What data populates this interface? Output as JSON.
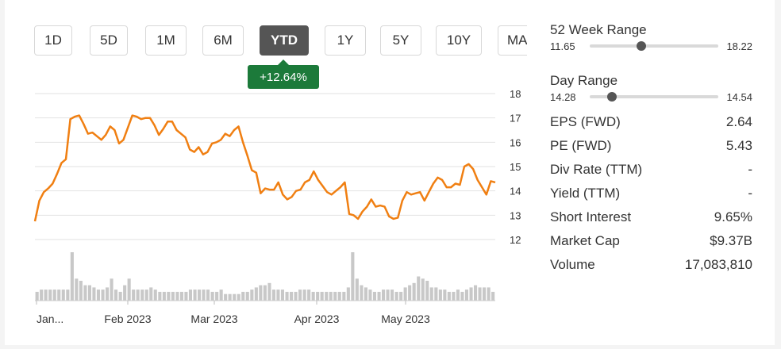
{
  "tabs": [
    {
      "label": "1D",
      "active": false
    },
    {
      "label": "5D",
      "active": false
    },
    {
      "label": "1M",
      "active": false
    },
    {
      "label": "6M",
      "active": false
    },
    {
      "label": "YTD",
      "active": true
    },
    {
      "label": "1Y",
      "active": false
    },
    {
      "label": "5Y",
      "active": false
    },
    {
      "label": "10Y",
      "active": false
    },
    {
      "label": "MAX",
      "active": false
    }
  ],
  "change_badge": "+12.64%",
  "colors": {
    "line": "#f07f12",
    "badge": "#1c7a3a",
    "volume": "#c8c8c8",
    "active_tab": "#555555"
  },
  "chart_data": {
    "type": "line",
    "ylim": [
      12,
      18
    ],
    "yticks": [
      "18",
      "17",
      "16",
      "15",
      "14",
      "13",
      "12"
    ],
    "xticks": [
      "Jan...",
      "Feb 2023",
      "Mar 2023",
      "Apr 2023",
      "May 2023"
    ],
    "grid": true,
    "series": [
      {
        "values": [
          12.75,
          13.6,
          13.95,
          14.1,
          14.3,
          14.7,
          15.15,
          15.3,
          16.95,
          17.05,
          17.1,
          16.75,
          16.35,
          16.4,
          16.25,
          16.1,
          16.3,
          16.65,
          16.5,
          15.95,
          16.1,
          16.6,
          17.1,
          17.05,
          16.95,
          17.0,
          17.0,
          16.7,
          16.3,
          16.55,
          16.85,
          16.85,
          16.5,
          16.35,
          16.2,
          15.7,
          15.6,
          15.8,
          15.5,
          15.6,
          15.95,
          16.0,
          16.1,
          16.35,
          16.25,
          16.5,
          16.65,
          16.0,
          15.45,
          14.85,
          14.75,
          13.9,
          14.1,
          14.05,
          14.05,
          14.35,
          13.85,
          13.65,
          13.75,
          14.0,
          14.05,
          14.35,
          14.45,
          14.8,
          14.45,
          14.2,
          13.95,
          13.85,
          14.0,
          14.15,
          14.35,
          13.05,
          13.0,
          12.85,
          13.15,
          13.35,
          13.65,
          13.35,
          13.4,
          13.35,
          12.95,
          12.85,
          12.9,
          13.6,
          13.95,
          13.85,
          13.9,
          13.95,
          13.6,
          13.95,
          14.3,
          14.55,
          14.45,
          14.15,
          14.15,
          14.3,
          14.25,
          15.0,
          15.1,
          14.9,
          14.45,
          14.15,
          13.85,
          14.4,
          14.35
        ]
      }
    ],
    "volume": [
      4,
      5,
      5,
      5,
      5,
      5,
      5,
      5,
      22,
      10,
      9,
      7,
      7,
      6,
      5,
      5,
      6,
      10,
      5,
      4,
      7,
      10,
      5,
      5,
      5,
      5,
      6,
      5,
      4,
      4,
      4,
      4,
      4,
      4,
      4,
      5,
      5,
      5,
      5,
      5,
      4,
      4,
      5,
      3,
      3,
      3,
      3,
      4,
      4,
      5,
      6,
      7,
      7,
      8,
      5,
      5,
      5,
      4,
      4,
      4,
      5,
      5,
      5,
      4,
      4,
      4,
      4,
      4,
      4,
      4,
      4,
      6,
      22,
      10,
      7,
      6,
      5,
      4,
      4,
      5,
      5,
      5,
      4,
      4,
      6,
      7,
      8,
      11,
      10,
      9,
      6,
      6,
      5,
      5,
      4,
      4,
      5,
      4,
      5,
      6,
      7,
      6,
      6,
      6,
      4
    ]
  },
  "stats": {
    "week52": {
      "label": "52 Week Range",
      "low": "11.65",
      "high": "18.22",
      "pos": 0.4
    },
    "day": {
      "label": "Day Range",
      "low": "14.28",
      "high": "14.54",
      "pos": 0.17
    },
    "rows": [
      {
        "label": "EPS (FWD)",
        "value": "2.64"
      },
      {
        "label": "PE (FWD)",
        "value": "5.43"
      },
      {
        "label": "Div Rate (TTM)",
        "value": "-"
      },
      {
        "label": "Yield (TTM)",
        "value": "-"
      },
      {
        "label": "Short Interest",
        "value": "9.65%"
      },
      {
        "label": "Market Cap",
        "value": "$9.37B"
      },
      {
        "label": "Volume",
        "value": "17,083,810"
      }
    ]
  }
}
